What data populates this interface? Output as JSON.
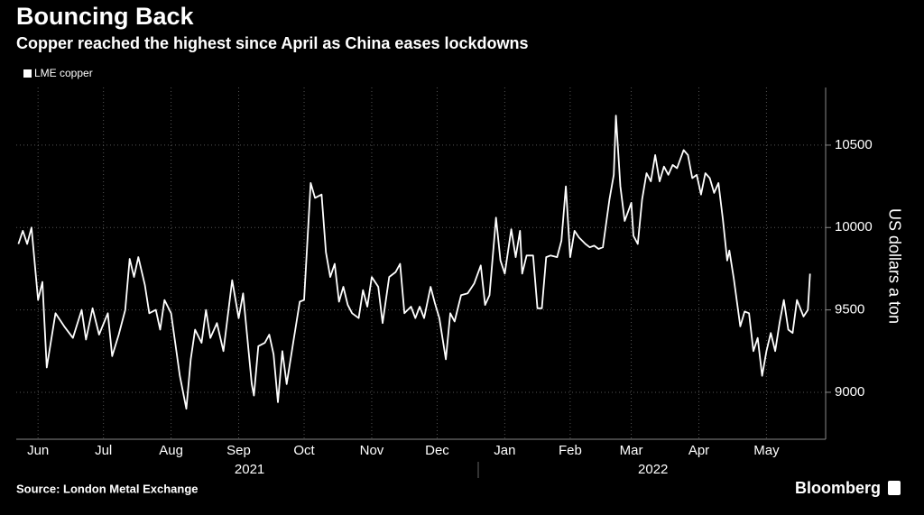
{
  "chart_data": {
    "type": "line",
    "title": "Bouncing Back",
    "subtitle": "Copper reached the highest since April as China eases lockdowns",
    "y_label": "US dollars a ton",
    "source": "Source: London Metal Exchange",
    "credit": "Bloomberg",
    "x": [
      6,
      8,
      10,
      12,
      15,
      17,
      19,
      23,
      27,
      31,
      35,
      37,
      40,
      43,
      47,
      49,
      52,
      55,
      57,
      59,
      61,
      64,
      66,
      69,
      71,
      73,
      76,
      80,
      83,
      85,
      87,
      90,
      92,
      94,
      97,
      100,
      104,
      107,
      109,
      113,
      114,
      116,
      119,
      121,
      123,
      125,
      127,
      129,
      132,
      135,
      137,
      140,
      142,
      145,
      147,
      149,
      151,
      153,
      155,
      157,
      159,
      162,
      164,
      166,
      168,
      171,
      173,
      176,
      179,
      181,
      183,
      186,
      188,
      190,
      192,
      195,
      197,
      199,
      202,
      204,
      206,
      209,
      212,
      215,
      218,
      220,
      222,
      225,
      227,
      229,
      232,
      234,
      236,
      237,
      239,
      242,
      244,
      246,
      248,
      250,
      253,
      255,
      257,
      259,
      261,
      263,
      266,
      268,
      270,
      272,
      274,
      277,
      279,
      280,
      282,
      284,
      287,
      288,
      290,
      292,
      294,
      296,
      298,
      300,
      302,
      304,
      306,
      308,
      311,
      313,
      315,
      317,
      319,
      321,
      323,
      325,
      327,
      329,
      331,
      332,
      334,
      337,
      339,
      341,
      343,
      345,
      347,
      349,
      351,
      353,
      355,
      357,
      359,
      361,
      363,
      366,
      368,
      369
    ],
    "series": [
      {
        "name": "LME copper",
        "color": "#ffffff",
        "values": [
          9900,
          9980,
          9900,
          10000,
          9560,
          9670,
          9150,
          9480,
          9400,
          9330,
          9500,
          9320,
          9510,
          9350,
          9480,
          9220,
          9350,
          9500,
          9810,
          9700,
          9820,
          9650,
          9480,
          9500,
          9380,
          9560,
          9480,
          9100,
          8900,
          9200,
          9380,
          9300,
          9500,
          9330,
          9420,
          9250,
          9680,
          9450,
          9600,
          9050,
          8980,
          9280,
          9300,
          9350,
          9230,
          8940,
          9250,
          9050,
          9300,
          9550,
          9560,
          10270,
          10180,
          10200,
          9850,
          9700,
          9780,
          9550,
          9640,
          9530,
          9480,
          9450,
          9620,
          9520,
          9700,
          9640,
          9420,
          9700,
          9730,
          9780,
          9480,
          9520,
          9450,
          9520,
          9450,
          9640,
          9540,
          9450,
          9200,
          9480,
          9430,
          9590,
          9600,
          9660,
          9770,
          9530,
          9590,
          10060,
          9800,
          9720,
          9990,
          9820,
          9980,
          9720,
          9830,
          9830,
          9510,
          9510,
          9820,
          9830,
          9820,
          9920,
          10250,
          9820,
          9980,
          9940,
          9900,
          9880,
          9890,
          9870,
          9880,
          10170,
          10320,
          10680,
          10250,
          10040,
          10150,
          9950,
          9900,
          10170,
          10330,
          10280,
          10440,
          10280,
          10370,
          10320,
          10380,
          10360,
          10470,
          10440,
          10300,
          10320,
          10200,
          10330,
          10300,
          10210,
          10270,
          10050,
          9800,
          9860,
          9690,
          9400,
          9490,
          9480,
          9250,
          9330,
          9100,
          9250,
          9360,
          9250,
          9420,
          9560,
          9380,
          9360,
          9560,
          9460,
          9500,
          9720
        ]
      }
    ],
    "xlim": [
      5,
      372
    ],
    "xticks": [
      {
        "value": 15,
        "label": "Jun"
      },
      {
        "value": 45,
        "label": "Jul"
      },
      {
        "value": 76,
        "label": "Aug"
      },
      {
        "value": 107,
        "label": "Sep"
      },
      {
        "value": 137,
        "label": "Oct"
      },
      {
        "value": 168,
        "label": "Nov"
      },
      {
        "value": 198,
        "label": "Dec"
      },
      {
        "value": 229,
        "label": "Jan"
      },
      {
        "value": 259,
        "label": "Feb"
      },
      {
        "value": 287,
        "label": "Mar"
      },
      {
        "value": 318,
        "label": "Apr"
      },
      {
        "value": 349,
        "label": "May"
      }
    ],
    "year_labels": [
      {
        "value": 112,
        "label": "2021"
      },
      {
        "value": 297,
        "label": "2022"
      }
    ],
    "ylim": [
      8715,
      10850
    ],
    "yticks": [
      9000,
      9500,
      10000,
      10500
    ],
    "grid": true
  }
}
